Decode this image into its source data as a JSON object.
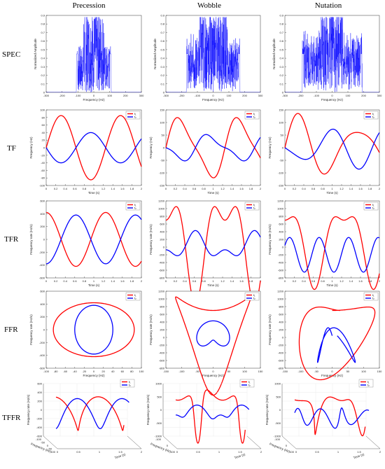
{
  "columns": [
    "Precession",
    "Wobble",
    "Nutation"
  ],
  "rows": [
    "SPEC",
    "TF",
    "TFR",
    "FFR",
    "TFFR"
  ],
  "colors": {
    "f1": "#ff0000",
    "f2": "#0000ff",
    "spec": "#0000ff"
  },
  "legend": [
    "f₁",
    "f₂"
  ],
  "chart_data": [
    {
      "row": "SPEC",
      "type": "area",
      "xlabel": "Frequency (Hz)",
      "ylabel": "Normalized Amplitude",
      "xlim": [
        -300,
        300
      ],
      "ylim": [
        0,
        0.9
      ],
      "xticks": [
        -300,
        -200,
        -100,
        0,
        100,
        200,
        300
      ],
      "yticks": [
        0,
        0.1,
        0.2,
        0.3,
        0.4,
        0.5,
        0.6,
        0.7,
        0.8,
        0.9
      ],
      "panels": [
        {
          "title": "Precession",
          "band": [
            -110,
            110
          ],
          "peak_band": [
            -65,
            65
          ],
          "shoulder": 0
        },
        {
          "title": "Wobble",
          "band": [
            -170,
            170
          ],
          "peak_band": [
            -90,
            90
          ],
          "shoulder": 0.15
        },
        {
          "title": "Nutation",
          "band": [
            -190,
            190
          ],
          "peak_band": [
            -70,
            70
          ],
          "shoulder": 0.2
        }
      ]
    },
    {
      "row": "TF",
      "type": "line",
      "xlabel": "Time (s)",
      "ylabel": "Frequency (Hz)",
      "xticks": [
        0,
        0.2,
        0.4,
        0.6,
        0.8,
        1,
        1.2,
        1.4,
        1.6,
        1.8,
        2
      ],
      "panels": [
        {
          "title": "Precession",
          "ylim": [
            -100,
            100
          ],
          "yticks": [
            -100,
            -80,
            -60,
            -40,
            -20,
            0,
            20,
            40,
            60,
            80,
            100
          ]
        },
        {
          "title": "Wobble",
          "ylim": [
            -150,
            150
          ],
          "yticks": [
            -150,
            -100,
            -50,
            0,
            50,
            100,
            150
          ]
        },
        {
          "title": "Nutation",
          "ylim": [
            -150,
            150
          ],
          "yticks": [
            -150,
            -100,
            -50,
            0,
            50,
            100,
            150
          ]
        }
      ]
    },
    {
      "row": "TFR",
      "type": "line",
      "xlabel": "Time (s)",
      "ylabel": "Frequency rate (Hz/s)",
      "xticks": [
        0,
        0.2,
        0.4,
        0.6,
        0.8,
        1,
        1.2,
        1.4,
        1.6,
        1.8,
        2
      ],
      "panels": [
        {
          "title": "Precession",
          "ylim": [
            -600,
            600
          ],
          "yticks": [
            -600,
            -400,
            -200,
            0,
            200,
            400,
            600
          ]
        },
        {
          "title": "Wobble",
          "ylim": [
            -800,
            1200
          ],
          "yticks": [
            -800,
            -600,
            -400,
            -200,
            0,
            200,
            400,
            600,
            800,
            1000,
            1200
          ]
        },
        {
          "title": "Nutation",
          "ylim": [
            -800,
            1200
          ],
          "yticks": [
            -800,
            -600,
            -400,
            -200,
            0,
            200,
            400,
            600,
            800,
            1000,
            1200
          ]
        }
      ]
    },
    {
      "row": "FFR",
      "type": "line",
      "xlabel": "Frequency (Hz)",
      "ylabel": "Frequency rate (Hz/s)",
      "panels": [
        {
          "title": "Precession",
          "xlim": [
            -100,
            100
          ],
          "xticks": [
            -100,
            -80,
            -60,
            -40,
            -20,
            0,
            20,
            40,
            60,
            80,
            100
          ],
          "ylim": [
            -600,
            600
          ],
          "yticks": [
            -600,
            -400,
            -200,
            0,
            200,
            400,
            600
          ]
        },
        {
          "title": "Wobble",
          "xlim": [
            -150,
            150
          ],
          "xticks": [
            -150,
            -100,
            -50,
            0,
            50,
            100,
            150
          ],
          "ylim": [
            -800,
            1200
          ],
          "yticks": [
            -800,
            -600,
            -400,
            -200,
            0,
            200,
            400,
            600,
            800,
            1000,
            1200
          ]
        },
        {
          "title": "Nutation",
          "xlim": [
            -150,
            150
          ],
          "xticks": [
            -150,
            -100,
            -50,
            0,
            50,
            100,
            150
          ],
          "ylim": [
            -800,
            1200
          ],
          "yticks": [
            -800,
            -600,
            -400,
            -200,
            0,
            200,
            400,
            600,
            800,
            1000,
            1200
          ]
        }
      ]
    },
    {
      "row": "TFFR",
      "type": "line",
      "xlabel": "Frequency (Hz)",
      "ylabel": "Frequency rate (Hz/s)",
      "zlabel": "Time (s)",
      "panels": [
        {
          "title": "Precession",
          "xticks": [
            -100,
            -50,
            0,
            50,
            100
          ],
          "yticks": [
            -600,
            -400,
            -200,
            0,
            200,
            400,
            600
          ],
          "tticks": [
            0,
            0.5,
            1,
            1.5,
            2
          ]
        },
        {
          "title": "Wobble",
          "xticks": [
            -100,
            0,
            100
          ],
          "yticks": [
            -1000,
            -500,
            0,
            500,
            1000
          ],
          "tticks": [
            0,
            0.5,
            1,
            1.5,
            2
          ]
        },
        {
          "title": "Nutation",
          "xticks": [
            -100,
            0,
            100
          ],
          "yticks": [
            -1000,
            -500,
            0,
            500,
            1000
          ],
          "tticks": [
            0,
            0.5,
            1,
            1.5,
            2
          ]
        }
      ]
    }
  ]
}
